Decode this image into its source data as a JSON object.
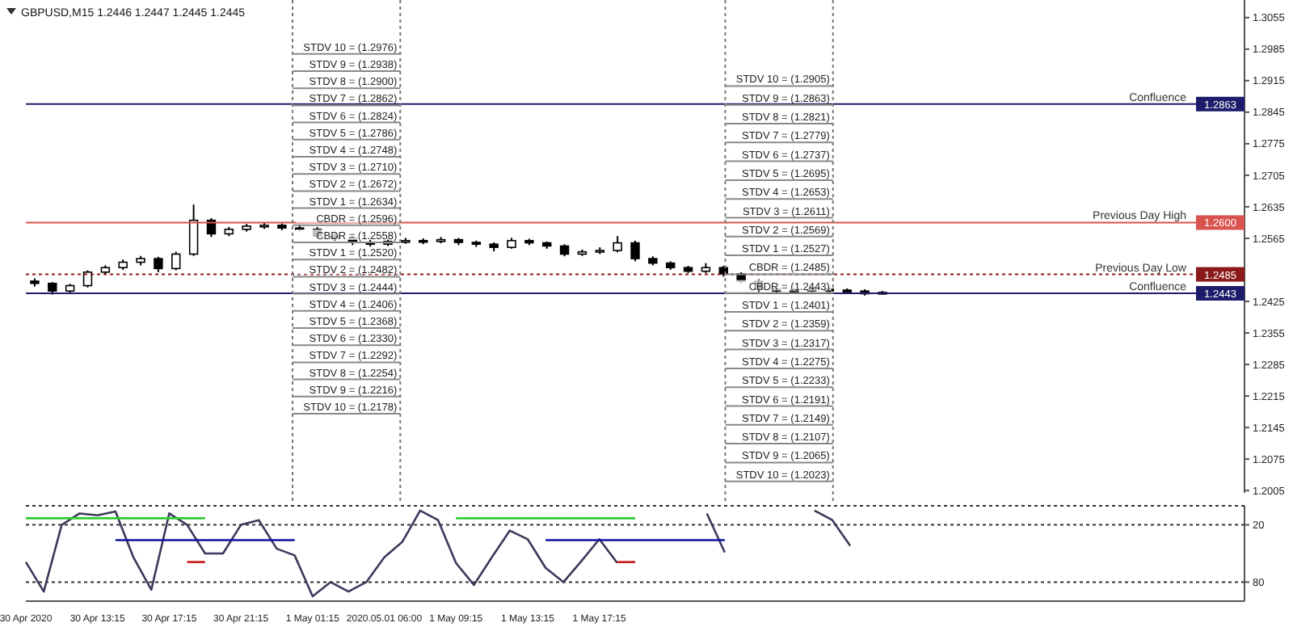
{
  "chart_data": [
    {
      "type": "candlestick",
      "title": "GBPUSD,M15  1.2446 1.2447 1.2445 1.2445",
      "color": "#000000",
      "tick_labels": "y",
      "categories": [
        null,
        null,
        null,
        null,
        null,
        null,
        null,
        null,
        null,
        null,
        null,
        null,
        null,
        null,
        null,
        null,
        null,
        null,
        null,
        null,
        null,
        null,
        null,
        null,
        null,
        null,
        null,
        null,
        null,
        null,
        null,
        null,
        null,
        null,
        null,
        null,
        null,
        null,
        null,
        null,
        null,
        null,
        null,
        null,
        null,
        null,
        null,
        null,
        null,
        null,
        null,
        null,
        null,
        null,
        null,
        null,
        null,
        null,
        null,
        null,
        null,
        null,
        null,
        null,
        null,
        null,
        null,
        null,
        null
      ],
      "ohlc": [
        [
          1.247,
          1.2476,
          1.2458,
          1.2465
        ],
        [
          1.2465,
          1.2468,
          1.244,
          1.2448
        ],
        [
          1.2448,
          1.2464,
          1.2443,
          1.246
        ],
        [
          1.246,
          1.2494,
          1.2456,
          1.249
        ],
        [
          1.249,
          1.2505,
          1.2484,
          1.25
        ],
        [
          1.25,
          1.2518,
          1.2495,
          1.2512
        ],
        [
          1.2512,
          1.2526,
          1.2505,
          1.252
        ],
        [
          1.252,
          1.2524,
          1.249,
          1.2498
        ],
        [
          1.2498,
          1.2535,
          1.2494,
          1.253
        ],
        [
          1.253,
          1.264,
          1.2526,
          1.2605
        ],
        [
          1.2605,
          1.261,
          1.2568,
          1.2575
        ],
        [
          1.2575,
          1.259,
          1.257,
          1.2585
        ],
        [
          1.2585,
          1.2597,
          1.258,
          1.2592
        ],
        [
          1.2592,
          1.26,
          1.2586,
          1.2594
        ],
        [
          1.2594,
          1.2598,
          1.2583,
          1.2588
        ],
        [
          1.2588,
          1.2596,
          1.258,
          1.2585
        ],
        [
          1.2585,
          1.259,
          1.2565,
          1.257
        ],
        [
          1.257,
          1.2576,
          1.256,
          1.2565
        ],
        [
          1.2565,
          1.257,
          1.255,
          1.2556
        ],
        [
          1.2556,
          1.2562,
          1.2546,
          1.2552
        ],
        [
          1.2552,
          1.2564,
          1.2548,
          1.2558
        ],
        [
          1.2558,
          1.2566,
          1.2553,
          1.256
        ],
        [
          1.256,
          1.2565,
          1.2552,
          1.2558
        ],
        [
          1.2558,
          1.2568,
          1.2554,
          1.2562
        ],
        [
          1.2562,
          1.2566,
          1.255,
          1.2556
        ],
        [
          1.2556,
          1.256,
          1.2546,
          1.2552
        ],
        [
          1.2552,
          1.2556,
          1.2536,
          1.2545
        ],
        [
          1.2545,
          1.2566,
          1.2542,
          1.256
        ],
        [
          1.256,
          1.2564,
          1.255,
          1.2555
        ],
        [
          1.2555,
          1.2558,
          1.2542,
          1.2548
        ],
        [
          1.2548,
          1.2552,
          1.2525,
          1.253
        ],
        [
          1.253,
          1.254,
          1.2526,
          1.2535
        ],
        [
          1.2535,
          1.2545,
          1.253,
          1.2538
        ],
        [
          1.2538,
          1.257,
          1.2534,
          1.2555
        ],
        [
          1.2555,
          1.256,
          1.2514,
          1.252
        ],
        [
          1.252,
          1.2525,
          1.2505,
          1.251
        ],
        [
          1.251,
          1.2514,
          1.2495,
          1.25
        ],
        [
          1.25,
          1.2504,
          1.2488,
          1.2492
        ],
        [
          1.2492,
          1.251,
          1.2488,
          1.25
        ],
        [
          1.25,
          1.2504,
          1.248,
          1.2486
        ],
        [
          1.2486,
          1.249,
          1.2465,
          1.247
        ],
        [
          1.247,
          1.2474,
          1.2446,
          1.2452
        ],
        [
          1.2452,
          1.2456,
          1.2442,
          1.2448
        ],
        [
          1.2448,
          1.2456,
          1.2444,
          1.245
        ],
        [
          1.245,
          1.2458,
          1.2446,
          1.2452
        ],
        [
          1.2452,
          1.2456,
          1.2445,
          1.245
        ],
        [
          1.245,
          1.2454,
          1.2444,
          1.2448
        ],
        [
          1.2448,
          1.2452,
          1.2438,
          1.2442
        ],
        [
          1.2442,
          1.2448,
          1.244,
          1.2445
        ],
        null,
        null,
        null,
        null,
        null,
        null,
        null,
        null,
        null,
        null,
        null,
        null,
        null,
        null,
        null,
        null,
        null,
        null,
        null,
        null
      ],
      "ylim": [
        1.2,
        1.3094
      ],
      "yticks": [
        1.2005,
        1.2075,
        1.2145,
        1.2215,
        1.2285,
        1.2355,
        1.2425,
        1.2565,
        1.2635,
        1.2705,
        1.2775,
        1.2845,
        1.2915,
        1.2985,
        1.3055
      ],
      "ref_lines": [
        {
          "axis": "y",
          "value": 1.2863,
          "label": "Confluence",
          "color": "#1c1c6b",
          "line_style": "solid"
        },
        {
          "axis": "y",
          "value": 1.26,
          "label": "Previous Day High",
          "color": "#d9534f",
          "line_style": "solid"
        },
        {
          "axis": "y",
          "value": 1.2485,
          "label": "Previous Day Low",
          "color": "#8b1a1a",
          "line_style": "dotted"
        },
        {
          "axis": "y",
          "value": 1.2443,
          "label": "Confluence",
          "color": "#1c1c6b",
          "line_style": "solid"
        }
      ],
      "annotations": [
        {
          "text": "1.2863",
          "y": 1.2863
        },
        {
          "text": "1.2600",
          "y": 1.26
        },
        {
          "text": "1.2485",
          "y": 1.2485
        },
        {
          "text": "1.2443",
          "y": 1.2443
        },
        "STDV 10 = (1.2976)",
        "STDV 9 = (1.2938)",
        "STDV 8 = (1.2900)",
        "STDV 7 = (1.2862)",
        "STDV 6 = (1.2824)",
        "STDV 5 = (1.2786)",
        "STDV 4 = (1.2748)",
        "STDV 3 = (1.2710)",
        "STDV 2 = (1.2672)",
        "STDV 1 = (1.2634)",
        "CBDR  = (1.2596)",
        "CBDR  = (1.2558)",
        "STDV 1 = (1.2520)",
        "STDV 2 = (1.2482)",
        "STDV 3 = (1.2444)",
        "STDV 4 = (1.2406)",
        "STDV 5 = (1.2368)",
        "STDV 6 = (1.2330)",
        "STDV 7 = (1.2292)",
        "STDV 8 = (1.2254)",
        "STDV 9 = (1.2216)",
        "STDV 10 = (1.2178)",
        "STDV 10 = (1.2905)",
        "STDV 9 = (1.2863)",
        "STDV 8 = (1.2821)",
        "STDV 7 = (1.2779)",
        "STDV 6 = (1.2737)",
        "STDV 5 = (1.2695)",
        "STDV 4 = (1.2653)",
        "STDV 3 = (1.2611)",
        "STDV 2 = (1.2569)",
        "STDV 1 = (1.2527)",
        "CBDR  = (1.2485)",
        "CBDR  = (1.2443)",
        "STDV 1 = (1.2401)",
        "STDV 2 = (1.2359)",
        "STDV 3 = (1.2317)",
        "STDV 4 = (1.2275)",
        "STDV 5 = (1.2233)",
        "STDV 6 = (1.2191)",
        "STDV 7 = (1.2149)",
        "STDV 8 = (1.2107)",
        "STDV 9 = (1.2065)",
        "STDV 10 = (1.2023)"
      ]
    },
    {
      "type": "line",
      "grid": "y",
      "line_style": "solid",
      "categories": [
        "30 Apr 2020",
        null,
        null,
        null,
        "30 Apr 13:15",
        null,
        null,
        null,
        "30 Apr 17:15",
        null,
        null,
        null,
        "30 Apr 21:15",
        null,
        null,
        null,
        "1 May 01:15",
        null,
        null,
        null,
        "2020.05.01 06:00",
        null,
        null,
        null,
        "1 May 09:15",
        null,
        null,
        null,
        "1 May 13:15",
        null,
        null,
        null,
        "1 May 17:15",
        null,
        null,
        null,
        null,
        null,
        null,
        null,
        null,
        null,
        null,
        null,
        null,
        null,
        null,
        null,
        null,
        null,
        null,
        null,
        null,
        null,
        null,
        null,
        null,
        null,
        null,
        null,
        null,
        null,
        null,
        null,
        null,
        null,
        null,
        null,
        null
      ],
      "ylim": [
        100,
        0
      ],
      "yticks": [
        20,
        80
      ],
      "series": [
        {
          "color": "#3a3a5a",
          "values": [
            59,
            90,
            20,
            8,
            10,
            6,
            54,
            88,
            8,
            20,
            50,
            50,
            20,
            15,
            45,
            52,
            95,
            80,
            90,
            80,
            54,
            38,
            5,
            15,
            60,
            83,
            54,
            26,
            35,
            65,
            80,
            58,
            35,
            60,
            null,
            null,
            null,
            null,
            8,
            49,
            null,
            null,
            null,
            null,
            5,
            15,
            42,
            null,
            null,
            null,
            null,
            null,
            null,
            null,
            null,
            null,
            null,
            null,
            null,
            null,
            null,
            null,
            null,
            null,
            null,
            null,
            null,
            null,
            null
          ]
        },
        {
          "color": "#33cc33",
          "values": [
            13,
            13,
            13,
            13,
            13,
            13,
            13,
            13,
            13,
            13,
            13,
            null,
            null,
            null,
            null,
            null,
            null,
            null,
            null,
            null,
            null,
            null,
            null,
            null,
            13,
            13,
            13,
            13,
            13,
            13,
            13,
            13,
            13,
            13,
            13,
            null,
            null,
            null,
            null,
            null,
            null,
            null,
            null,
            null,
            null,
            null,
            null,
            null,
            null,
            null,
            null,
            null,
            null,
            null,
            null,
            null,
            null,
            null,
            null,
            null,
            null,
            null,
            null,
            null,
            null,
            null,
            null,
            null,
            null
          ]
        },
        {
          "color": "#1010a0",
          "values": [
            null,
            null,
            null,
            null,
            null,
            36,
            36,
            36,
            36,
            36,
            36,
            36,
            36,
            36,
            36,
            36,
            null,
            null,
            null,
            null,
            null,
            null,
            null,
            null,
            null,
            null,
            null,
            null,
            null,
            36,
            36,
            36,
            36,
            36,
            36,
            36,
            36,
            36,
            36,
            36,
            null,
            null,
            null,
            null,
            null,
            null,
            null,
            null,
            null,
            null,
            null,
            null,
            null,
            null,
            null,
            null,
            null,
            null,
            null,
            null,
            null,
            null,
            null,
            null,
            null,
            null,
            null,
            null,
            null
          ]
        },
        {
          "color": "#cc2020",
          "values": [
            null,
            null,
            null,
            null,
            null,
            null,
            null,
            null,
            null,
            59,
            59,
            null,
            null,
            null,
            null,
            null,
            null,
            null,
            null,
            null,
            null,
            null,
            null,
            null,
            null,
            null,
            null,
            null,
            null,
            null,
            null,
            null,
            null,
            59,
            59,
            null,
            null,
            null,
            null,
            null,
            null,
            null,
            null,
            null,
            null,
            null,
            null,
            null,
            null,
            null,
            null,
            null,
            null,
            null,
            null,
            null,
            null,
            null,
            null,
            null,
            null,
            null,
            null,
            null,
            null,
            null,
            null,
            null,
            null
          ]
        }
      ]
    }
  ]
}
